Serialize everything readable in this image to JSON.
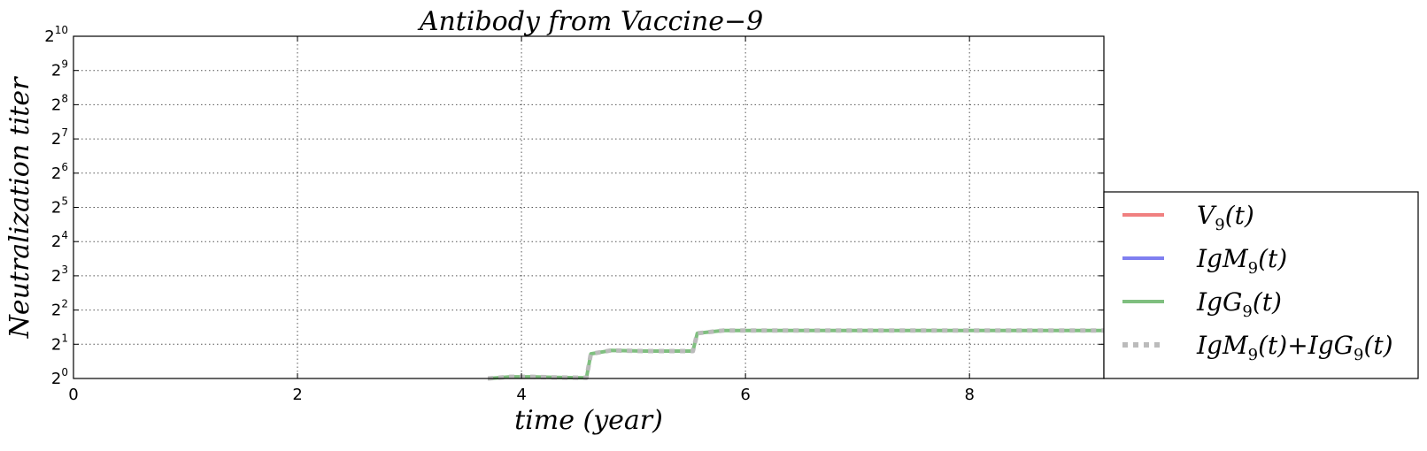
{
  "chart_data": {
    "type": "line",
    "title": "Antibody from Vaccine−9",
    "xlabel": "time (year)",
    "ylabel": "Neutralization  titer",
    "xlim": [
      0,
      9.2
    ],
    "ylim_log2": [
      0,
      10
    ],
    "y_scale": "log2",
    "grid": true,
    "legend_position": "outside-right",
    "x_ticks": [
      {
        "value": 0,
        "label": "0"
      },
      {
        "value": 2,
        "label": "2"
      },
      {
        "value": 4,
        "label": "4"
      },
      {
        "value": 6,
        "label": "6"
      },
      {
        "value": 8,
        "label": "8"
      }
    ],
    "y_ticks": [
      {
        "exp": 0,
        "base": "2",
        "sup": "0"
      },
      {
        "exp": 1,
        "base": "2",
        "sup": "1"
      },
      {
        "exp": 2,
        "base": "2",
        "sup": "2"
      },
      {
        "exp": 3,
        "base": "2",
        "sup": "3"
      },
      {
        "exp": 4,
        "base": "2",
        "sup": "4"
      },
      {
        "exp": 5,
        "base": "2",
        "sup": "5"
      },
      {
        "exp": 6,
        "base": "2",
        "sup": "6"
      },
      {
        "exp": 7,
        "base": "2",
        "sup": "7"
      },
      {
        "exp": 8,
        "base": "2",
        "sup": "8"
      },
      {
        "exp": 9,
        "base": "2",
        "sup": "9"
      },
      {
        "exp": 10,
        "base": "2",
        "sup": "10"
      }
    ],
    "series": [
      {
        "name": "V9(t)",
        "legend": {
          "main": "V",
          "sub": "9",
          "tail": "(t)"
        },
        "color": "#f08080",
        "style": "solid",
        "points": []
      },
      {
        "name": "IgM9(t)",
        "legend": {
          "main": "IgM",
          "sub": "9",
          "tail": "(t)"
        },
        "color": "#7f7ff0",
        "style": "solid",
        "points": []
      },
      {
        "name": "IgG9(t)",
        "legend": {
          "main": "IgG",
          "sub": "9",
          "tail": "(t)"
        },
        "color": "#7fbf7f",
        "style": "solid",
        "points": [
          [
            3.7,
            0.0
          ],
          [
            3.9,
            0.05
          ],
          [
            4.1,
            0.05
          ],
          [
            4.3,
            0.03
          ],
          [
            4.58,
            0.02
          ],
          [
            4.62,
            0.72
          ],
          [
            4.8,
            0.82
          ],
          [
            5.1,
            0.8
          ],
          [
            5.53,
            0.8
          ],
          [
            5.57,
            1.32
          ],
          [
            5.8,
            1.4
          ],
          [
            6.2,
            1.4
          ],
          [
            7.0,
            1.4
          ],
          [
            8.0,
            1.4
          ],
          [
            9.2,
            1.4
          ]
        ]
      },
      {
        "name": "IgM9(t)+IgG9(t)",
        "legend": {
          "main": "IgM",
          "sub": "9",
          "tail": "(t)+",
          "main2": "IgG",
          "sub2": "9",
          "tail2": "(t)"
        },
        "color": "#bbbbbb",
        "style": "dotted",
        "points": [
          [
            3.7,
            0.0
          ],
          [
            3.9,
            0.05
          ],
          [
            4.1,
            0.05
          ],
          [
            4.3,
            0.03
          ],
          [
            4.58,
            0.02
          ],
          [
            4.62,
            0.72
          ],
          [
            4.8,
            0.82
          ],
          [
            5.1,
            0.8
          ],
          [
            5.53,
            0.8
          ],
          [
            5.57,
            1.32
          ],
          [
            5.8,
            1.4
          ],
          [
            6.2,
            1.4
          ],
          [
            7.0,
            1.4
          ],
          [
            8.0,
            1.4
          ],
          [
            9.2,
            1.4
          ]
        ]
      }
    ]
  }
}
